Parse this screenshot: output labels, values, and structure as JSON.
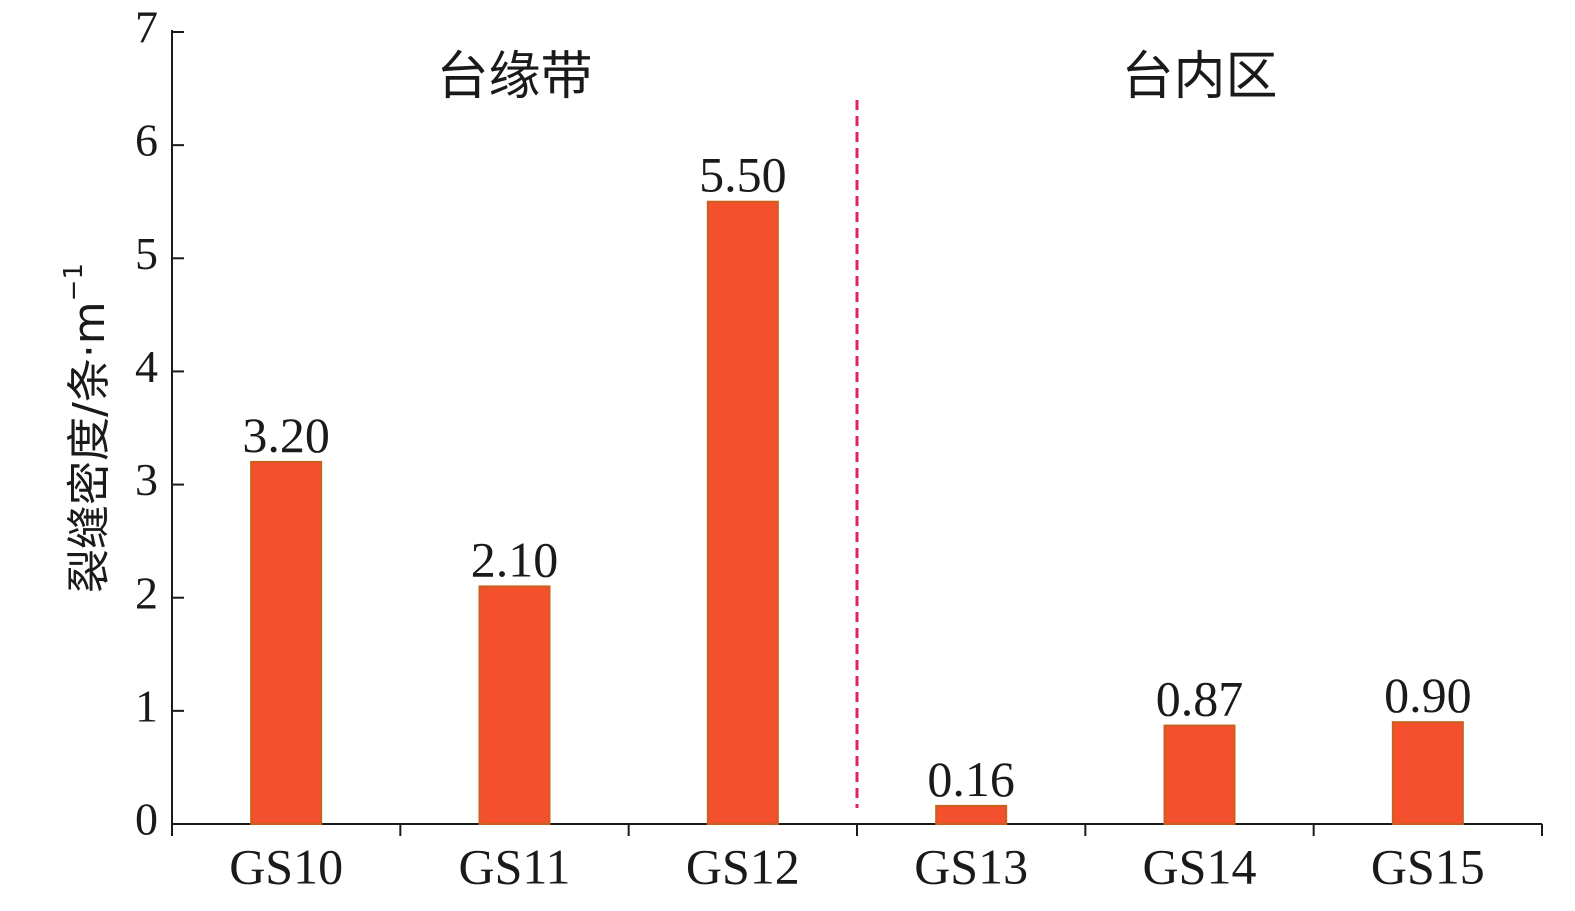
{
  "chart_data": {
    "type": "bar",
    "categories": [
      "GS10",
      "GS11",
      "GS12",
      "GS13",
      "GS14",
      "GS15"
    ],
    "values": [
      3.2,
      2.1,
      5.5,
      0.16,
      0.87,
      0.9
    ],
    "value_labels": [
      "3.20",
      "2.10",
      "5.50",
      "0.16",
      "0.87",
      "0.90"
    ],
    "ylabel": "裂缝密度/条·m",
    "ylabel_superscript": "−1",
    "ylim": [
      0,
      7
    ],
    "yticks": [
      "0",
      "1",
      "2",
      "3",
      "4",
      "5",
      "6",
      "7"
    ],
    "regions": [
      {
        "label": "台缘带",
        "categories": [
          "GS10",
          "GS11",
          "GS12"
        ]
      },
      {
        "label": "台内区",
        "categories": [
          "GS13",
          "GS14",
          "GS15"
        ]
      }
    ],
    "divider_between": [
      "GS12",
      "GS13"
    ],
    "grid": false,
    "colors": {
      "bar_fill": "#f5502e",
      "bar_edge": "#c8601e",
      "divider": "#e0245e",
      "axis": "#1a1a1a"
    }
  }
}
